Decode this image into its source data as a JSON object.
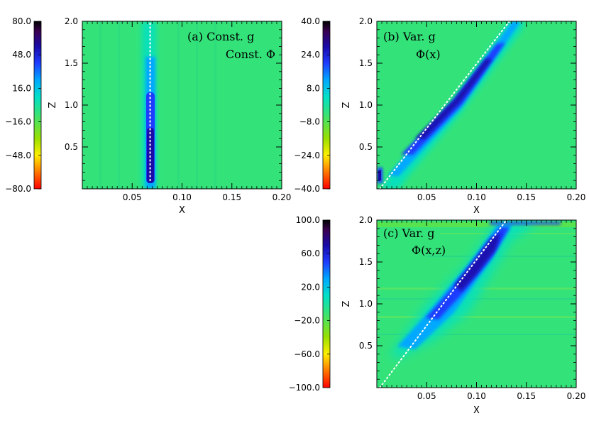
{
  "chart_data": [
    {
      "type": "heatmap",
      "panel_label": "(a) Const. g",
      "panel_sublabel": "Const. Φ",
      "xlabel": "X",
      "ylabel": "Z",
      "xlim": [
        0.0,
        0.2
      ],
      "ylim": [
        0.0,
        2.0
      ],
      "xticks": [
        0.05,
        0.1,
        0.15,
        0.2
      ],
      "xtick_labels": [
        "0.05",
        "0.10",
        "0.15",
        "0.20"
      ],
      "yticks": [
        0.5,
        1.0,
        1.5,
        2.0
      ],
      "ytick_labels": [
        "0.5",
        "1.0",
        "1.5",
        "2.0"
      ],
      "colorbar": {
        "range": [
          -80.0,
          80.0
        ],
        "ticks": [
          80.0,
          48.0,
          16.0,
          -16.0,
          -48.0,
          -80.0
        ],
        "tick_labels": [
          "80.0",
          "48.0",
          "16.0",
          "−16.0",
          "−48.0",
          "−80.0"
        ]
      },
      "feature": {
        "kind": "vertical-band",
        "x_center": 0.068,
        "z_range": [
          0.1,
          2.0
        ],
        "peak": 80.0
      },
      "dotted_line": {
        "points": [
          [
            0.068,
            0.1
          ],
          [
            0.068,
            2.0
          ]
        ],
        "color": "#ffffff"
      }
    },
    {
      "type": "heatmap",
      "panel_label": "(b) Var. g",
      "panel_sublabel": "Φ(x)",
      "xlabel": "X",
      "ylabel": "Z",
      "xlim": [
        0.0,
        0.2
      ],
      "ylim": [
        0.0,
        2.0
      ],
      "xticks": [
        0.05,
        0.1,
        0.15,
        0.2
      ],
      "xtick_labels": [
        "0.05",
        "0.10",
        "0.15",
        "0.20"
      ],
      "yticks": [
        0.5,
        1.0,
        1.5,
        2.0
      ],
      "ytick_labels": [
        "0.5",
        "1.0",
        "1.5",
        "2.0"
      ],
      "colorbar": {
        "range": [
          -40.0,
          40.0
        ],
        "ticks": [
          40.0,
          24.0,
          8.0,
          -8.0,
          -24.0,
          -40.0
        ],
        "tick_labels": [
          "40.0",
          "24.0",
          "8.0",
          "−8.0",
          "−24.0",
          "−40.0"
        ]
      },
      "feature": {
        "kind": "diagonal-band",
        "from": [
          0.003,
          0.0
        ],
        "to": [
          0.133,
          2.0
        ],
        "peak": 40.0
      },
      "dotted_line": {
        "points": [
          [
            0.003,
            0.0
          ],
          [
            0.133,
            2.0
          ]
        ],
        "color": "#ffffff"
      }
    },
    {
      "type": "heatmap",
      "panel_label": "(c) Var. g",
      "panel_sublabel": "Φ(x,z)",
      "xlabel": "X",
      "ylabel": "Z",
      "xlim": [
        0.0,
        0.2
      ],
      "ylim": [
        0.0,
        2.0
      ],
      "xticks": [
        0.05,
        0.1,
        0.15,
        0.2
      ],
      "xtick_labels": [
        "0.05",
        "0.10",
        "0.15",
        "0.20"
      ],
      "yticks": [
        0.5,
        1.0,
        1.5,
        2.0
      ],
      "ytick_labels": [
        "0.5",
        "1.0",
        "1.5",
        "2.0"
      ],
      "colorbar": {
        "range": [
          -100.0,
          100.0
        ],
        "ticks": [
          100.0,
          60.0,
          20.0,
          -20.0,
          -60.0,
          -100.0
        ],
        "tick_labels": [
          "100.0",
          "60.0",
          "20.0",
          "−20.0",
          "−60.0",
          "−100.0"
        ]
      },
      "feature": {
        "kind": "diagonal-band",
        "from": [
          0.003,
          0.0
        ],
        "to": [
          0.13,
          2.0
        ],
        "peak": 100.0
      },
      "dotted_line": {
        "points": [
          [
            0.003,
            0.0
          ],
          [
            0.13,
            2.0
          ]
        ],
        "color": "#ffffff"
      }
    }
  ],
  "colors": {
    "background": "#33e37a",
    "colormap": [
      "#ff0000",
      "#ff7700",
      "#ffee00",
      "#9ae000",
      "#33e37a",
      "#00e0c8",
      "#00a8ff",
      "#1e3cff",
      "#1a0aa8",
      "#3a0050",
      "#000000"
    ]
  }
}
